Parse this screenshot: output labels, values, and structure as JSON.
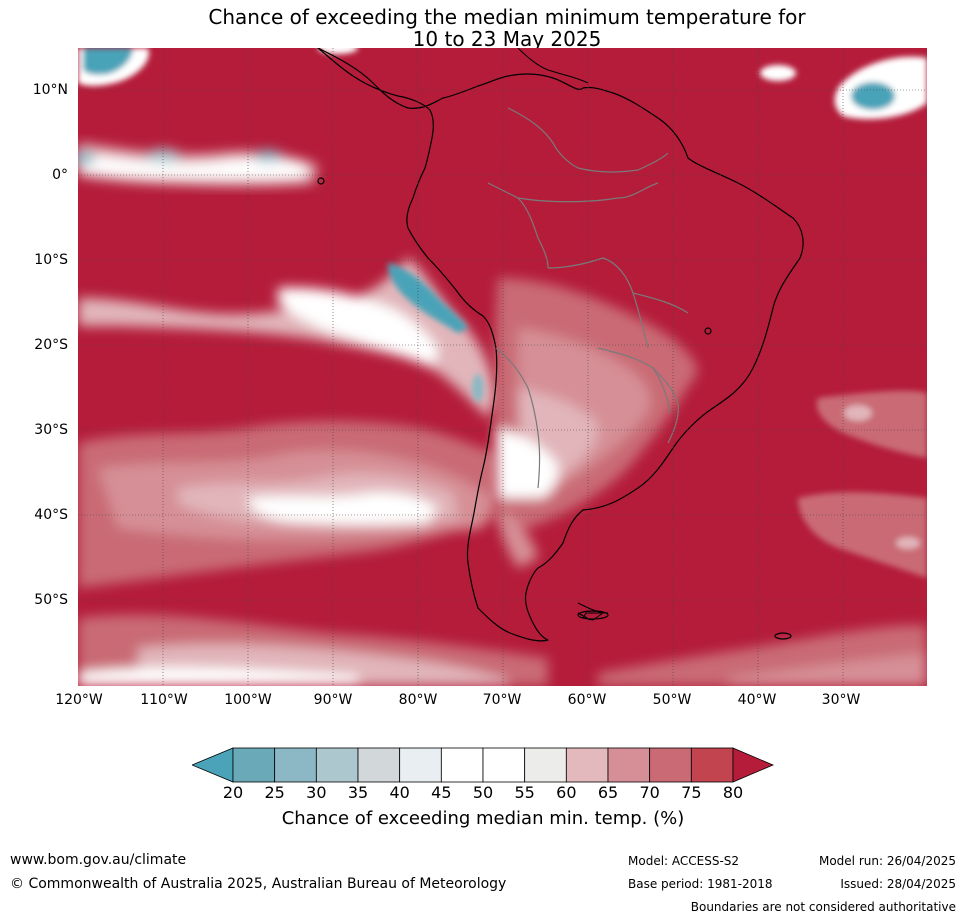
{
  "title": {
    "line1": "Chance of exceeding the median minimum temperature for",
    "line2": "10 to 23 May 2025"
  },
  "map": {
    "lat_labels": [
      "10°N",
      "0°",
      "10°S",
      "20°S",
      "30°S",
      "40°S",
      "50°S"
    ],
    "lon_labels": [
      "120°W",
      "110°W",
      "100°W",
      "90°W",
      "80°W",
      "70°W",
      "60°W",
      "50°W",
      "40°W",
      "30°W"
    ],
    "colors": {
      "deep_red": "#b41c3a",
      "red75": "#c2424f",
      "red70": "#c96a75",
      "pink65": "#d68f96",
      "pink60": "#e1b5ba",
      "white": "#ffffff",
      "grey35": "#d0d5d8",
      "teal25": "#8cb8c5",
      "teal20": "#6ba8b7",
      "teal_low": "#4aa3b8"
    }
  },
  "colorbar": {
    "ticks": [
      "20",
      "25",
      "30",
      "35",
      "40",
      "45",
      "50",
      "55",
      "60",
      "65",
      "70",
      "75",
      "80"
    ],
    "colors": [
      "#6aa9b8",
      "#8cb8c5",
      "#adc7cf",
      "#d2d7da",
      "#e8eef1",
      "#ffffff",
      "#ffffff",
      "#ececea",
      "#e3b9bd",
      "#d68f96",
      "#c96a75",
      "#c2444f"
    ],
    "under_color": "#4aa3b8",
    "over_color": "#b41c3a",
    "label": "Chance of exceeding median min. temp. (%)"
  },
  "footer": {
    "website": "www.bom.gov.au/climate",
    "copyright": "© Commonwealth of Australia 2025, Australian Bureau of Meteorology",
    "model": "Model: ACCESS-S2",
    "base_period": "Base period: 1981-2018",
    "model_run": "Model run: 26/04/2025",
    "issued": "Issued: 28/04/2025",
    "disclaimer": "Boundaries are not considered authoritative"
  }
}
